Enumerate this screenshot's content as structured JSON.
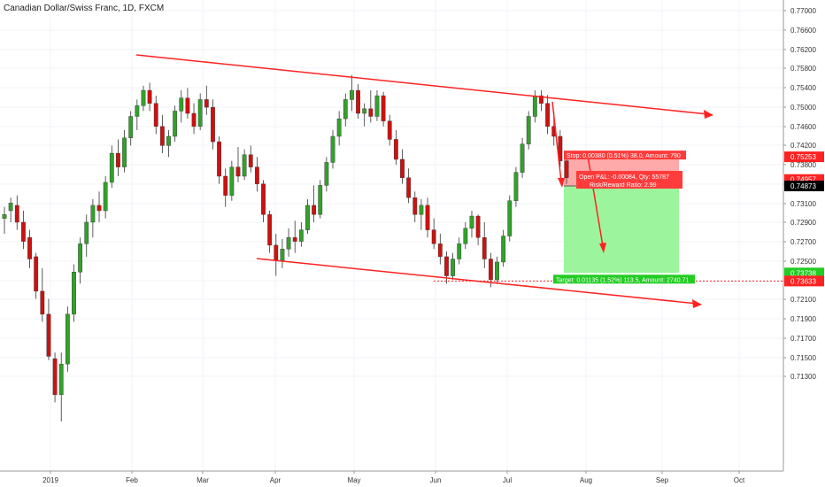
{
  "chart_data": {
    "type": "candlestick",
    "title": "Canadian Dollar/Swiss Franc, 1D, FXCM",
    "ylim": [
      0.712,
      0.7716
    ],
    "y_ticks": [
      "0.77000",
      "0.76600",
      "0.76200",
      "0.75800",
      "0.75400",
      "0.75000",
      "0.74600",
      "0.74200",
      "0.73800",
      "0.73400",
      "0.73100",
      "0.72900",
      "0.72700",
      "0.72500",
      "0.72300",
      "0.72100",
      "0.71900",
      "0.71700",
      "0.71500",
      "0.71300"
    ],
    "x_ticks": [
      "2019",
      "Feb",
      "Mar",
      "Apr",
      "May",
      "Jun",
      "Jul",
      "Aug",
      "Sep",
      "Oct"
    ],
    "colors": {
      "up": "#33a02c",
      "down": "#cc1111",
      "trend": "#ff2222",
      "target_bg": "#9cf59c",
      "stop_bg": "#ffaaaa"
    },
    "price_tags": [
      {
        "text": "0.75253",
        "value": 0.75253,
        "color": "#ff2222"
      },
      {
        "text": "0.74957",
        "value": 0.74957,
        "color": "#ff2222"
      },
      {
        "text": "0.74873",
        "value": 0.74873,
        "color": "#000000"
      },
      {
        "text": "0.73738",
        "value": 0.73738,
        "color": "#22cc22"
      },
      {
        "text": "0.73633",
        "value": 0.73633,
        "color": "#ff2222"
      }
    ],
    "position": {
      "stop_label": "Stop: 0.00380 (0.51%) 38.0, Amount: 790",
      "open_label": "Open P&L: -0.00084, Qty: 55787",
      "ratio_label": "Risk/Reward Ratio: 2.99",
      "target_label": "Target: 0.01135 (1.52%) 113.5, Amount: 2740.71",
      "entry": 0.74873,
      "stop": 0.75253,
      "target": 0.73738
    },
    "candles": [
      [
        0.7445,
        0.746,
        0.7425,
        0.745
      ],
      [
        0.7455,
        0.7472,
        0.744,
        0.7465
      ],
      [
        0.7462,
        0.7475,
        0.743,
        0.744
      ],
      [
        0.744,
        0.7455,
        0.7405,
        0.7415
      ],
      [
        0.742,
        0.743,
        0.738,
        0.7392
      ],
      [
        0.7395,
        0.74,
        0.734,
        0.735
      ],
      [
        0.735,
        0.738,
        0.731,
        0.732
      ],
      [
        0.732,
        0.734,
        0.726,
        0.7265
      ],
      [
        0.7262,
        0.727,
        0.7205,
        0.7215
      ],
      [
        0.7215,
        0.727,
        0.718,
        0.7255
      ],
      [
        0.7255,
        0.733,
        0.7245,
        0.732
      ],
      [
        0.732,
        0.7385,
        0.731,
        0.7375
      ],
      [
        0.7375,
        0.742,
        0.736,
        0.7412
      ],
      [
        0.7412,
        0.745,
        0.7395,
        0.744
      ],
      [
        0.744,
        0.747,
        0.742,
        0.7462
      ],
      [
        0.7462,
        0.748,
        0.744,
        0.7455
      ],
      [
        0.7455,
        0.75,
        0.7445,
        0.7492
      ],
      [
        0.7492,
        0.754,
        0.7485,
        0.753
      ],
      [
        0.753,
        0.7548,
        0.75,
        0.7512
      ],
      [
        0.7512,
        0.756,
        0.7505,
        0.755
      ],
      [
        0.755,
        0.7585,
        0.754,
        0.7578
      ],
      [
        0.7578,
        0.76,
        0.756,
        0.7592
      ],
      [
        0.7592,
        0.7618,
        0.7585,
        0.7612
      ],
      [
        0.7612,
        0.7622,
        0.7585,
        0.7595
      ],
      [
        0.7595,
        0.7605,
        0.7555,
        0.7565
      ],
      [
        0.7565,
        0.758,
        0.753,
        0.754
      ],
      [
        0.754,
        0.756,
        0.7525,
        0.7552
      ],
      [
        0.7552,
        0.7592,
        0.7545,
        0.7585
      ],
      [
        0.7585,
        0.7612,
        0.757,
        0.7602
      ],
      [
        0.7602,
        0.7615,
        0.7575,
        0.7582
      ],
      [
        0.7582,
        0.7595,
        0.7555,
        0.7565
      ],
      [
        0.7565,
        0.7608,
        0.756,
        0.76
      ],
      [
        0.76,
        0.7618,
        0.758,
        0.759
      ],
      [
        0.759,
        0.76,
        0.7535,
        0.7545
      ],
      [
        0.7545,
        0.7552,
        0.749,
        0.75
      ],
      [
        0.75,
        0.751,
        0.746,
        0.7475
      ],
      [
        0.7475,
        0.752,
        0.7468,
        0.7512
      ],
      [
        0.7512,
        0.7538,
        0.7492,
        0.75
      ],
      [
        0.75,
        0.7535,
        0.7495,
        0.7528
      ],
      [
        0.7528,
        0.754,
        0.7505,
        0.7512
      ],
      [
        0.7512,
        0.7525,
        0.748,
        0.749
      ],
      [
        0.749,
        0.7495,
        0.744,
        0.745
      ],
      [
        0.745,
        0.7455,
        0.74,
        0.741
      ],
      [
        0.741,
        0.7425,
        0.737,
        0.739
      ],
      [
        0.739,
        0.7418,
        0.738,
        0.7405
      ],
      [
        0.7405,
        0.7432,
        0.7395,
        0.742
      ],
      [
        0.742,
        0.7442,
        0.74,
        0.7415
      ],
      [
        0.7415,
        0.744,
        0.7408,
        0.743
      ],
      [
        0.743,
        0.747,
        0.7425,
        0.7462
      ],
      [
        0.7462,
        0.7488,
        0.744,
        0.745
      ],
      [
        0.745,
        0.7495,
        0.7445,
        0.7488
      ],
      [
        0.7488,
        0.7525,
        0.748,
        0.7518
      ],
      [
        0.7518,
        0.756,
        0.751,
        0.7552
      ],
      [
        0.7552,
        0.7585,
        0.754,
        0.7575
      ],
      [
        0.7575,
        0.7608,
        0.7565,
        0.76
      ],
      [
        0.76,
        0.7632,
        0.7585,
        0.7612
      ],
      [
        0.7612,
        0.762,
        0.7575,
        0.7582
      ],
      [
        0.7582,
        0.7595,
        0.7565,
        0.7588
      ],
      [
        0.7588,
        0.7612,
        0.757,
        0.7578
      ],
      [
        0.7578,
        0.7612,
        0.7572,
        0.7605
      ],
      [
        0.7605,
        0.761,
        0.7565,
        0.7572
      ],
      [
        0.7572,
        0.758,
        0.754,
        0.7548
      ],
      [
        0.7548,
        0.756,
        0.7515,
        0.7522
      ],
      [
        0.7522,
        0.7535,
        0.749,
        0.7498
      ],
      [
        0.7498,
        0.751,
        0.7465,
        0.7472
      ],
      [
        0.7472,
        0.748,
        0.744,
        0.745
      ],
      [
        0.745,
        0.747,
        0.743,
        0.7462
      ],
      [
        0.7462,
        0.7472,
        0.742,
        0.743
      ],
      [
        0.743,
        0.7445,
        0.7405,
        0.7412
      ],
      [
        0.7412,
        0.7425,
        0.7385,
        0.7395
      ],
      [
        0.7395,
        0.7402,
        0.736,
        0.737
      ],
      [
        0.737,
        0.74,
        0.7365,
        0.7392
      ],
      [
        0.7392,
        0.742,
        0.7385,
        0.7412
      ],
      [
        0.7412,
        0.744,
        0.7405,
        0.7432
      ],
      [
        0.7432,
        0.7455,
        0.742,
        0.7448
      ],
      [
        0.7448,
        0.745,
        0.741,
        0.742
      ],
      [
        0.742,
        0.744,
        0.738,
        0.7392
      ],
      [
        0.7392,
        0.74,
        0.7355,
        0.7365
      ],
      [
        0.7365,
        0.7395,
        0.736,
        0.7388
      ],
      [
        0.7388,
        0.743,
        0.7382,
        0.7422
      ],
      [
        0.7422,
        0.7475,
        0.7415,
        0.7468
      ],
      [
        0.7468,
        0.7512,
        0.746,
        0.7505
      ],
      [
        0.7505,
        0.755,
        0.7498,
        0.7542
      ],
      [
        0.7542,
        0.7585,
        0.7535,
        0.7578
      ],
      [
        0.7578,
        0.7612,
        0.757,
        0.7605
      ],
      [
        0.7605,
        0.7612,
        0.7585,
        0.7595
      ],
      [
        0.7595,
        0.7606,
        0.7555,
        0.7565
      ],
      [
        0.7565,
        0.7585,
        0.754,
        0.7552
      ],
      [
        0.7552,
        0.756,
        0.7512,
        0.752
      ],
      [
        0.752,
        0.753,
        0.749,
        0.7498
      ]
    ]
  }
}
